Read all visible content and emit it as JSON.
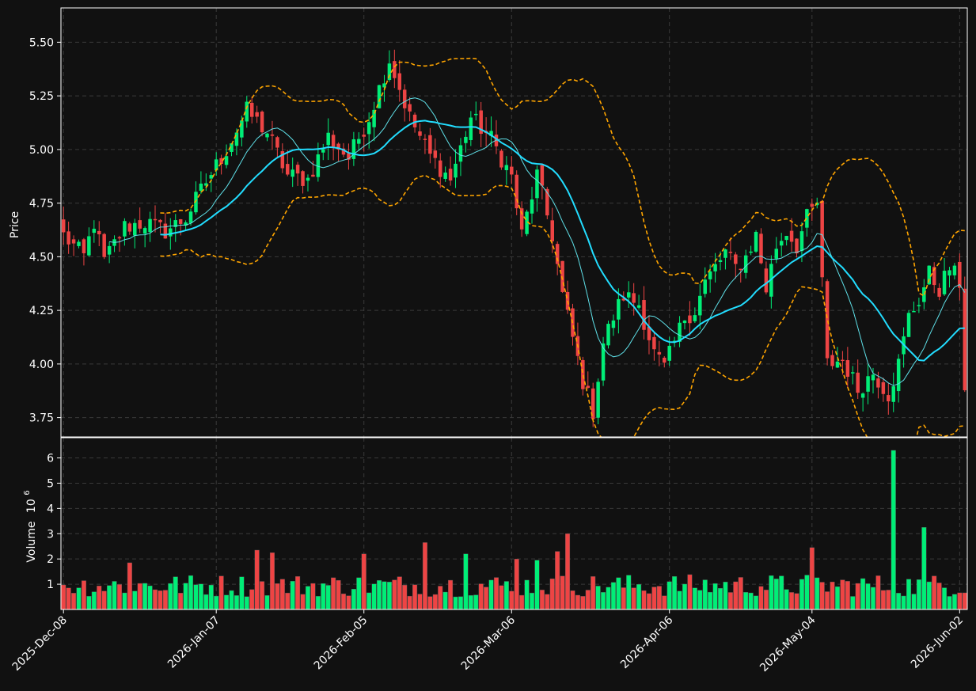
{
  "colors": {
    "background": "#111111",
    "up": "#00ee77",
    "down": "#ee4444",
    "ma_fast": "#5fe0e8",
    "ma_slow": "#22ddff",
    "band": "#ffa500",
    "grid": "#3a3a3a",
    "frame": "#ffffff"
  },
  "chart_data": {
    "type": "candlestick",
    "grid": true,
    "price_axis": {
      "label": "Price",
      "ylim": [
        3.66,
        5.66
      ],
      "ticks": [
        3.75,
        4.0,
        4.25,
        4.5,
        4.75,
        5.0,
        5.25,
        5.5
      ],
      "tick_labels": [
        "3.75",
        "4.00",
        "4.25",
        "4.50",
        "4.75",
        "5.00",
        "5.25",
        "5.50"
      ]
    },
    "volume_axis": {
      "label": "Volume",
      "exponent_label": "10",
      "exponent": "6",
      "ylim": [
        0,
        6.8
      ],
      "ticks": [
        1,
        2,
        3,
        4,
        5,
        6
      ],
      "tick_labels": [
        "1",
        "2",
        "3",
        "4",
        "5",
        "6"
      ]
    },
    "x_ticks": [
      {
        "index": 0,
        "label": "2025-Dec-08"
      },
      {
        "index": 30,
        "label": "2026-Jan-07"
      },
      {
        "index": 59,
        "label": "2026-Feb-05"
      },
      {
        "index": 88,
        "label": "2026-Mar-06"
      },
      {
        "index": 119,
        "label": "2026-Apr-06"
      },
      {
        "index": 147,
        "label": "2026-May-04"
      },
      {
        "index": 176,
        "label": "2026-Jun-02"
      }
    ],
    "num_days": 178,
    "anchors": [
      [
        0,
        4.6
      ],
      [
        4,
        4.5
      ],
      [
        6,
        4.66
      ],
      [
        8,
        4.48
      ],
      [
        12,
        4.64
      ],
      [
        16,
        4.66
      ],
      [
        20,
        4.62
      ],
      [
        24,
        4.68
      ],
      [
        28,
        4.85
      ],
      [
        32,
        5.0
      ],
      [
        36,
        5.18
      ],
      [
        40,
        5.08
      ],
      [
        44,
        4.88
      ],
      [
        48,
        4.86
      ],
      [
        52,
        5.06
      ],
      [
        56,
        4.96
      ],
      [
        60,
        5.15
      ],
      [
        64,
        5.42
      ],
      [
        68,
        5.15
      ],
      [
        72,
        4.97
      ],
      [
        76,
        4.86
      ],
      [
        80,
        5.15
      ],
      [
        84,
        5.05
      ],
      [
        88,
        4.87
      ],
      [
        90,
        4.6
      ],
      [
        93,
        4.88
      ],
      [
        96,
        4.6
      ],
      [
        98,
        4.32
      ],
      [
        100,
        4.12
      ],
      [
        102,
        3.92
      ],
      [
        104,
        3.78
      ],
      [
        106,
        4.1
      ],
      [
        108,
        4.22
      ],
      [
        110,
        4.32
      ],
      [
        113,
        4.28
      ],
      [
        116,
        4.05
      ],
      [
        118,
        3.98
      ],
      [
        120,
        4.1
      ],
      [
        122,
        4.22
      ],
      [
        124,
        4.25
      ],
      [
        126,
        4.38
      ],
      [
        128,
        4.45
      ],
      [
        130,
        4.52
      ],
      [
        132,
        4.45
      ],
      [
        134,
        4.5
      ],
      [
        136,
        4.6
      ],
      [
        138,
        4.35
      ],
      [
        140,
        4.55
      ],
      [
        142,
        4.62
      ],
      [
        144,
        4.55
      ],
      [
        146,
        4.68
      ],
      [
        148,
        4.75
      ],
      [
        150,
        4.0
      ],
      [
        153,
        4.02
      ],
      [
        156,
        3.88
      ],
      [
        159,
        3.96
      ],
      [
        162,
        3.86
      ],
      [
        164,
        4.0
      ],
      [
        166,
        4.22
      ],
      [
        168,
        4.3
      ],
      [
        170,
        4.42
      ],
      [
        172,
        4.35
      ],
      [
        174,
        4.45
      ],
      [
        176,
        4.38
      ],
      [
        177,
        3.9
      ]
    ],
    "volume_spikes": [
      [
        13,
        1.85
      ],
      [
        38,
        2.35
      ],
      [
        41,
        2.25
      ],
      [
        59,
        2.2
      ],
      [
        71,
        2.65
      ],
      [
        79,
        2.2
      ],
      [
        89,
        2.0
      ],
      [
        93,
        1.95
      ],
      [
        97,
        2.3
      ],
      [
        99,
        3.0
      ],
      [
        147,
        2.45
      ],
      [
        163,
        6.3
      ],
      [
        169,
        3.25
      ]
    ],
    "moving_averages": [
      {
        "window": 10,
        "width": 1
      },
      {
        "window": 20,
        "width": 2
      }
    ],
    "bands": {
      "window": 20,
      "k": 2
    }
  }
}
